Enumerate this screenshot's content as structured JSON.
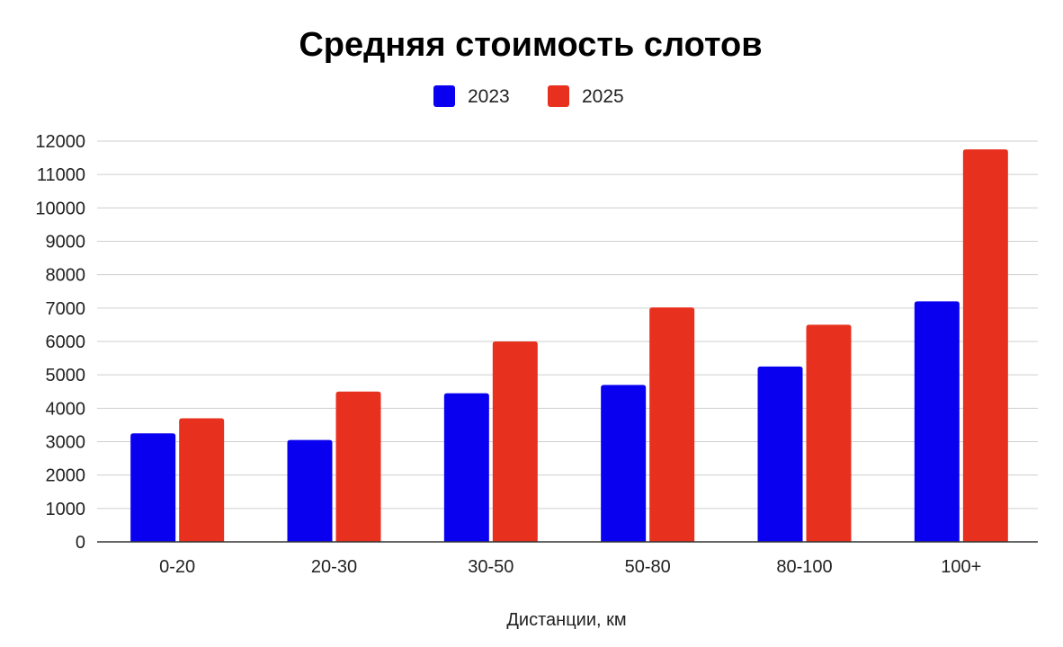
{
  "chart_data": {
    "type": "bar",
    "title": "Средняя стоимость слотов",
    "xlabel": "Дистанции, км",
    "ylabel": "",
    "categories": [
      "0-20",
      "20-30",
      "30-50",
      "50-80",
      "80-100",
      "100+"
    ],
    "series": [
      {
        "name": "2023",
        "color": "#0a00f0",
        "values": [
          3250,
          3050,
          4450,
          4700,
          5250,
          7200
        ]
      },
      {
        "name": "2025",
        "color": "#e8301f",
        "values": [
          3700,
          4500,
          6000,
          7020,
          6500,
          11750
        ]
      }
    ],
    "ylim": [
      0,
      12000
    ],
    "yticks": [
      "0",
      "1000",
      "2000",
      "3000",
      "4000",
      "5000",
      "6000",
      "7000",
      "8000",
      "9000",
      "10000",
      "11000",
      "12000"
    ],
    "grid": true,
    "legend_position": "top"
  }
}
